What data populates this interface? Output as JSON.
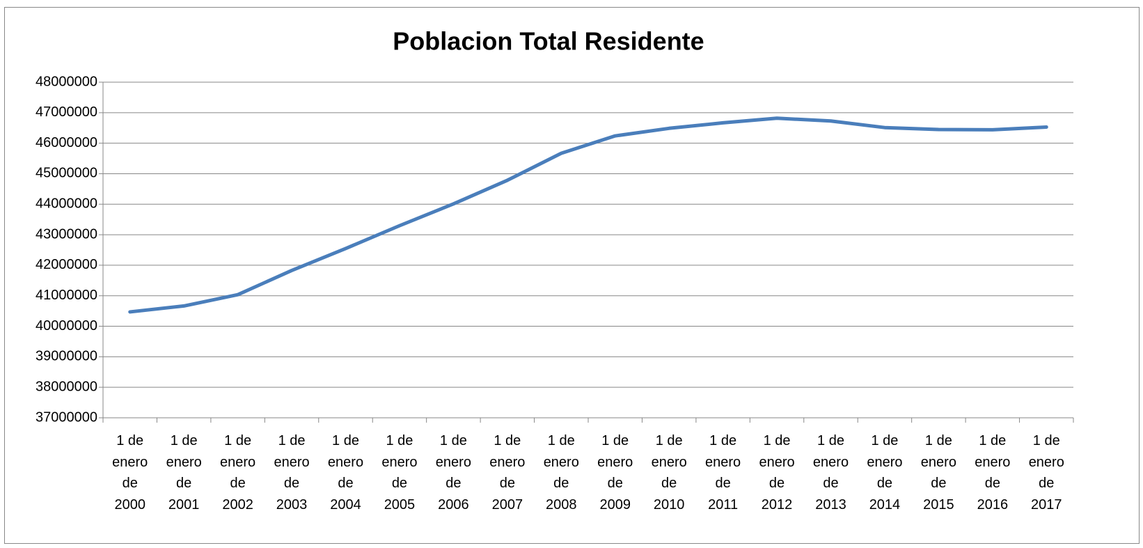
{
  "chart_data": {
    "type": "line",
    "title": "Poblacion Total Residente",
    "categories": [
      "1 de enero de 2000",
      "1 de enero de 2001",
      "1 de enero de 2002",
      "1 de enero de 2003",
      "1 de enero de 2004",
      "1 de enero de 2005",
      "1 de enero de 2006",
      "1 de enero de 2007",
      "1 de enero de 2008",
      "1 de enero de 2009",
      "1 de enero de 2010",
      "1 de enero de 2011",
      "1 de enero de 2012",
      "1 de enero de 2013",
      "1 de enero de 2014",
      "1 de enero de 2015",
      "1 de enero de 2016",
      "1 de enero de 2017"
    ],
    "values": [
      40470000,
      40665000,
      41035000,
      41828000,
      42547000,
      43296000,
      44010000,
      44784000,
      45669000,
      46239000,
      46487000,
      46667000,
      46818000,
      46727000,
      46512000,
      46449000,
      46440000,
      46528000
    ],
    "color": "#4a7ebb",
    "ylim": [
      37000000,
      48000000
    ],
    "yticks": [
      37000000,
      38000000,
      39000000,
      40000000,
      41000000,
      42000000,
      43000000,
      44000000,
      45000000,
      46000000,
      47000000,
      48000000
    ],
    "grid": true
  }
}
